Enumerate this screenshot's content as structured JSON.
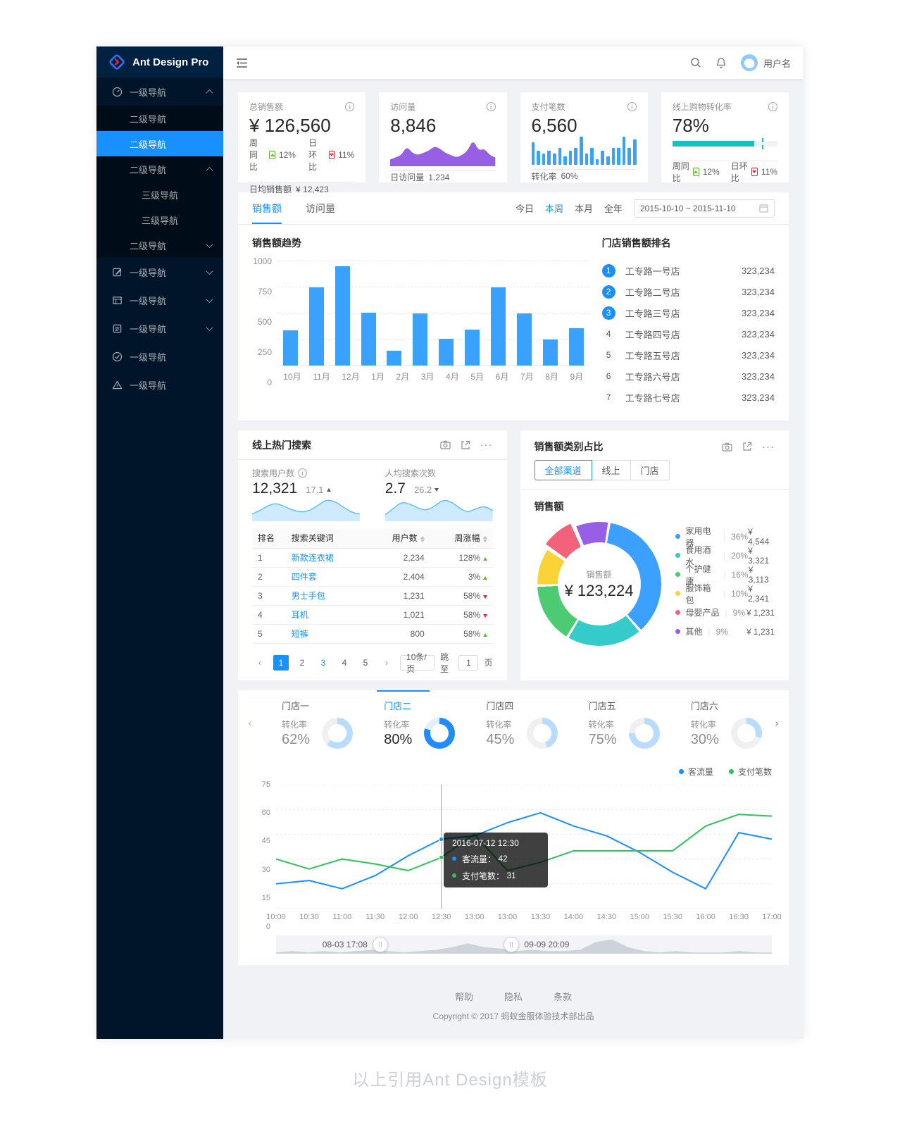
{
  "app": {
    "logo_text": "Ant Design Pro",
    "caption": "以上引用Ant Design模板"
  },
  "topbar": {
    "username": "用户名"
  },
  "sidebar": {
    "items": [
      {
        "label": "一级导航"
      },
      {
        "label": "二级导航"
      },
      {
        "label": "二级导航"
      },
      {
        "label": "二级导航"
      },
      {
        "label": "三级导航"
      },
      {
        "label": "三级导航"
      },
      {
        "label": "二级导航"
      },
      {
        "label": "一级导航"
      },
      {
        "label": "一级导航"
      },
      {
        "label": "一级导航"
      },
      {
        "label": "一级导航"
      },
      {
        "label": "一级导航"
      }
    ]
  },
  "stat_cards": {
    "sales": {
      "title": "总销售额",
      "value": "¥ 126,560",
      "wow_label": "周同比",
      "wow_value": "12%",
      "dod_label": "日环比",
      "dod_value": "11%",
      "footer_label": "日均销售额",
      "footer_value": "¥ 12,423"
    },
    "visits": {
      "title": "访问量",
      "value": "8,846",
      "footer_label": "日访问量",
      "footer_value": "1,234"
    },
    "payments": {
      "title": "支付笔数",
      "value": "6,560",
      "footer_label": "转化率",
      "footer_value": "60%"
    },
    "conversion": {
      "title": "线上购物转化率",
      "value": "78%",
      "wow_label": "周同比",
      "wow_value": "12%",
      "dod_label": "日环比",
      "dod_value": "11%"
    }
  },
  "sales_card": {
    "tabs": [
      {
        "label": "销售额"
      },
      {
        "label": "访问量"
      }
    ],
    "ranges": [
      {
        "label": "今日"
      },
      {
        "label": "本周"
      },
      {
        "label": "本月"
      },
      {
        "label": "全年"
      }
    ],
    "date_range": "2015-10-10 ~ 2015-11-10",
    "chart_title": "销售额趋势",
    "ranking_title": "门店销售额排名",
    "ranking": [
      {
        "rank": "1",
        "name": "工专路一号店",
        "value": "323,234"
      },
      {
        "rank": "2",
        "name": "工专路二号店",
        "value": "323,234"
      },
      {
        "rank": "3",
        "name": "工专路三号店",
        "value": "323,234"
      },
      {
        "rank": "4",
        "name": "工专路四号店",
        "value": "323,234"
      },
      {
        "rank": "5",
        "name": "工专路五号店",
        "value": "323,234"
      },
      {
        "rank": "6",
        "name": "工专路六号店",
        "value": "323,234"
      },
      {
        "rank": "7",
        "name": "工专路七号店",
        "value": "323,234"
      }
    ]
  },
  "hot_search": {
    "title": "线上热门搜索",
    "metric1": {
      "label": "搜索用户数",
      "value": "12,321",
      "delta": "17.1"
    },
    "metric2": {
      "label": "人均搜索次数",
      "value": "2.7",
      "delta": "26.2"
    },
    "table": {
      "headers": [
        "排名",
        "搜索关键词",
        "用户数",
        "周涨幅"
      ],
      "rows": [
        {
          "rank": "1",
          "keyword": "新款连衣裙",
          "users": "2,234",
          "trend": "128%"
        },
        {
          "rank": "2",
          "keyword": "四件套",
          "users": "2,404",
          "trend": "3%"
        },
        {
          "rank": "3",
          "keyword": "男士手包",
          "users": "1,231",
          "trend": "58%"
        },
        {
          "rank": "4",
          "keyword": "耳机",
          "users": "1,021",
          "trend": "58%"
        },
        {
          "rank": "5",
          "keyword": "短裤",
          "users": "800",
          "trend": "58%"
        }
      ]
    },
    "pagination": {
      "prev": "‹",
      "pages": [
        "1",
        "2",
        "3",
        "4",
        "5"
      ],
      "next": "›",
      "page_size": "10条/页",
      "jump_label": "跳至",
      "jump_value": "1",
      "jump_suffix": "页"
    }
  },
  "category_card": {
    "title": "销售额类别占比",
    "segments": [
      {
        "label": "全部渠道"
      },
      {
        "label": "线上"
      },
      {
        "label": "门店"
      }
    ],
    "subtitle": "销售额",
    "center_label": "销售额",
    "center_value": "¥ 123,224"
  },
  "stores_card": {
    "tabs": [
      {
        "name": "门店一",
        "label": "转化率",
        "value": "62%"
      },
      {
        "name": "门店二",
        "label": "转化率",
        "value": "80%"
      },
      {
        "name": "门店四",
        "label": "转化率",
        "value": "45%"
      },
      {
        "name": "门店五",
        "label": "转化率",
        "value": "75%"
      },
      {
        "name": "门店六",
        "label": "转化率",
        "value": "30%"
      }
    ],
    "legend": [
      {
        "name": "客流量",
        "color": "#1890ff"
      },
      {
        "name": "支付笔数",
        "color": "#2fc25b"
      }
    ],
    "tooltip": {
      "title": "2016-07-12 12:30",
      "rows": [
        {
          "name": "客流量：",
          "value": "42",
          "color": "#1890ff"
        },
        {
          "name": "支付笔数：",
          "value": "31",
          "color": "#2fc25b"
        }
      ]
    },
    "slider": {
      "left_label": "08-03 17:08",
      "right_label": "09-09 20:09"
    }
  },
  "footer": {
    "links": [
      {
        "label": "帮助"
      },
      {
        "label": "隐私"
      },
      {
        "label": "条款"
      }
    ],
    "copyright": "Copyright © 2017 蚂蚁金服体验技术部出品"
  },
  "chart_data": [
    {
      "id": "visits-spark",
      "type": "area",
      "color": "#975fe4",
      "values": [
        3,
        4,
        5,
        9,
        6,
        5,
        6,
        7,
        9,
        8,
        6,
        5,
        4,
        5,
        7,
        12,
        7,
        8,
        5,
        4
      ]
    },
    {
      "id": "payments-spark",
      "type": "bar",
      "color": "#3aa1ff",
      "values": [
        8,
        5,
        4,
        5,
        4,
        6,
        3,
        5,
        6,
        10,
        4,
        6,
        2,
        5,
        3,
        6,
        6,
        10,
        6,
        9
      ]
    },
    {
      "id": "conversion-progress",
      "type": "progress",
      "percent": 78,
      "target": 85,
      "color": "#13c2c2"
    },
    {
      "id": "sales-trend",
      "type": "bar",
      "title": "销售额趋势",
      "categories": [
        "10月",
        "11月",
        "12月",
        "1月",
        "2月",
        "3月",
        "4月",
        "5月",
        "6月",
        "7月",
        "8月",
        "9月"
      ],
      "values": [
        335,
        750,
        950,
        510,
        145,
        500,
        260,
        345,
        750,
        500,
        250,
        355
      ],
      "ylim": [
        0,
        1000
      ],
      "yticks": [
        0,
        250,
        500,
        750,
        1000
      ]
    },
    {
      "id": "search-users-spark",
      "type": "area",
      "color": "#5ab8ff",
      "fill": "#cdeafe",
      "values": [
        4,
        6,
        9,
        10,
        8,
        6,
        5,
        6,
        9,
        12,
        11,
        8,
        5,
        4
      ]
    },
    {
      "id": "search-percapita-spark",
      "type": "area",
      "color": "#5ab8ff",
      "fill": "#cdeafe",
      "values": [
        3,
        6,
        9,
        8,
        6,
        5,
        7,
        10,
        9,
        6,
        4,
        6,
        7,
        5
      ]
    },
    {
      "id": "category-donut",
      "type": "pie",
      "title": "销售额",
      "center_value": "¥ 123,224",
      "slices": [
        {
          "name": "家用电器",
          "pct": 36,
          "pct_label": "36%",
          "amount": "¥ 4,544",
          "color": "#3ba0ff"
        },
        {
          "name": "食用酒水",
          "pct": 20,
          "pct_label": "20%",
          "amount": "¥ 3,321",
          "color": "#36cbcb"
        },
        {
          "name": "个护健康",
          "pct": 16,
          "pct_label": "16%",
          "amount": "¥ 3,113",
          "color": "#4dcb73"
        },
        {
          "name": "服饰箱包",
          "pct": 10,
          "pct_label": "10%",
          "amount": "¥ 2,341",
          "color": "#fad337"
        },
        {
          "name": "母婴产品",
          "pct": 9,
          "pct_label": "9%",
          "amount": "¥ 1,231",
          "color": "#f2637b",
          "offset": true
        },
        {
          "name": "其他",
          "pct": 9,
          "pct_label": "9%",
          "amount": "¥ 1,231",
          "color": "#975fe5"
        }
      ]
    },
    {
      "id": "store-gauges",
      "type": "gauge",
      "values": [
        62,
        80,
        45,
        75,
        30
      ],
      "active_index": 1
    },
    {
      "id": "traffic-lines",
      "type": "line",
      "x": [
        "10:00",
        "10:30",
        "11:00",
        "11:30",
        "12:00",
        "12:30",
        "13:00",
        "13:00",
        "13:30",
        "14:00",
        "14:30",
        "15:00",
        "15:30",
        "16:00",
        "16:30",
        "17:00"
      ],
      "ylim": [
        0,
        75
      ],
      "yticks": [
        0,
        15,
        30,
        45,
        60,
        75
      ],
      "crosshair_index": 5,
      "series": [
        {
          "name": "客流量",
          "color": "#1890ff",
          "values": [
            15,
            17,
            12,
            20,
            32,
            42,
            44,
            52,
            58,
            50,
            44,
            34,
            22,
            12,
            46,
            42
          ]
        },
        {
          "name": "支付笔数",
          "color": "#2fc25b",
          "values": [
            30,
            24,
            30,
            27,
            23,
            31,
            45,
            23,
            28,
            35,
            35,
            35,
            35,
            50,
            57,
            56
          ]
        }
      ],
      "legend_position": "top-right"
    }
  ]
}
